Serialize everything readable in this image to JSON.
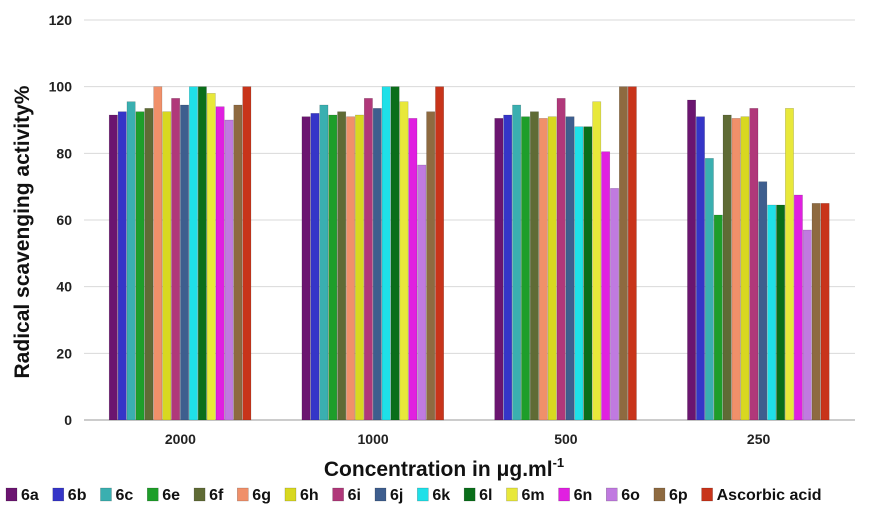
{
  "chart_data": {
    "type": "bar",
    "title": "",
    "xlabel": "Concentration in μg.ml",
    "xlabel_superscript": "-1",
    "ylabel": "Radical scavenging activity%",
    "ylim": [
      0,
      120
    ],
    "yticks": [
      0,
      20,
      40,
      60,
      80,
      100,
      120
    ],
    "grid": true,
    "legend_position": "bottom",
    "categories": [
      "2000",
      "1000",
      "500",
      "250"
    ],
    "series": [
      {
        "name": "6a",
        "color": "#6B1570",
        "values": [
          91.5,
          91.0,
          90.5,
          96.0
        ]
      },
      {
        "name": "6b",
        "color": "#3535C8",
        "values": [
          92.5,
          92.0,
          91.5,
          91.0
        ]
      },
      {
        "name": "6c",
        "color": "#3AAFB0",
        "values": [
          95.5,
          94.5,
          94.5,
          78.5
        ]
      },
      {
        "name": "6e",
        "color": "#1E9E2A",
        "values": [
          92.5,
          91.5,
          91.0,
          61.5
        ]
      },
      {
        "name": "6f",
        "color": "#5F6B35",
        "values": [
          93.5,
          92.5,
          92.5,
          91.5
        ]
      },
      {
        "name": "6g",
        "color": "#F0906A",
        "values": [
          100.0,
          91.0,
          90.5,
          90.5
        ]
      },
      {
        "name": "6h",
        "color": "#D8D820",
        "values": [
          92.5,
          91.5,
          91.0,
          91.0
        ]
      },
      {
        "name": "6i",
        "color": "#B0387A",
        "values": [
          96.5,
          96.5,
          96.5,
          93.5
        ]
      },
      {
        "name": "6j",
        "color": "#3E5E8E",
        "values": [
          94.5,
          93.5,
          91.0,
          71.5
        ]
      },
      {
        "name": "6k",
        "color": "#1FE0E8",
        "values": [
          100.0,
          100.0,
          88.0,
          64.5
        ]
      },
      {
        "name": "6l",
        "color": "#0A6E1A",
        "values": [
          100.0,
          100.0,
          88.0,
          64.5
        ]
      },
      {
        "name": "6m",
        "color": "#E8E83A",
        "values": [
          98.0,
          95.5,
          95.5,
          93.5
        ]
      },
      {
        "name": "6n",
        "color": "#E020E0",
        "values": [
          94.0,
          90.5,
          80.5,
          67.5
        ]
      },
      {
        "name": "6o",
        "color": "#C07AE0",
        "values": [
          90.0,
          76.5,
          69.5,
          57.0
        ]
      },
      {
        "name": "6p",
        "color": "#8E6A40",
        "values": [
          94.5,
          92.5,
          100.0,
          65.0
        ]
      },
      {
        "name": "Ascorbic acid",
        "color": "#C8341A",
        "values": [
          100.0,
          100.0,
          100.0,
          65.0
        ]
      }
    ]
  }
}
